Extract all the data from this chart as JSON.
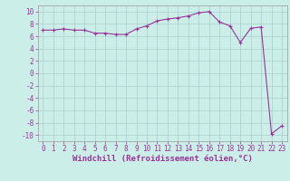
{
  "x": [
    0,
    1,
    2,
    3,
    4,
    5,
    6,
    7,
    8,
    9,
    10,
    11,
    12,
    13,
    14,
    15,
    16,
    17,
    18,
    19,
    20,
    21,
    22,
    23
  ],
  "y": [
    7.0,
    7.0,
    7.2,
    7.0,
    7.0,
    6.5,
    6.5,
    6.3,
    6.3,
    7.2,
    7.7,
    8.5,
    8.8,
    9.0,
    9.3,
    9.8,
    10.0,
    8.3,
    7.7,
    5.0,
    7.3,
    7.5,
    -9.8,
    -8.5
  ],
  "line_color": "#993399",
  "marker": "+",
  "markersize": 3.5,
  "linewidth": 0.8,
  "background_color": "#cceee8",
  "grid_color": "#aacccc",
  "xlabel": "Windchill (Refroidissement éolien,°C)",
  "xlabel_fontsize": 6.5,
  "tick_fontsize": 5.5,
  "ylim": [
    -11,
    11
  ],
  "xlim": [
    -0.5,
    23.5
  ],
  "yticks": [
    -10,
    -8,
    -6,
    -4,
    -2,
    0,
    2,
    4,
    6,
    8,
    10
  ],
  "xticks": [
    0,
    1,
    2,
    3,
    4,
    5,
    6,
    7,
    8,
    9,
    10,
    11,
    12,
    13,
    14,
    15,
    16,
    17,
    18,
    19,
    20,
    21,
    22,
    23
  ]
}
